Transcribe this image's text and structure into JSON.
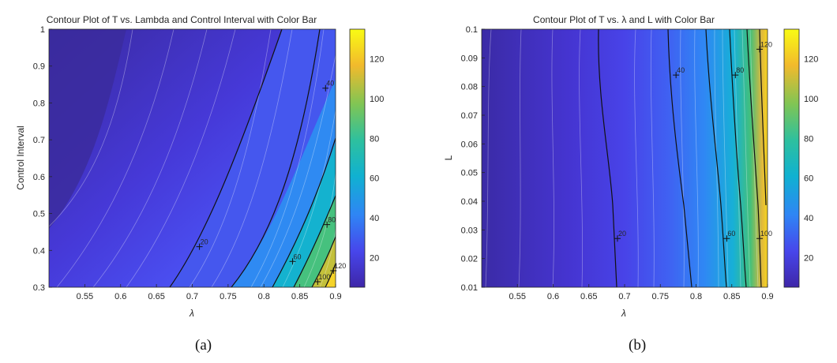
{
  "chart_data": [
    {
      "type": "contour",
      "panel": "a",
      "title": "Contour Plot of T vs. Lambda and Control Interval with Color Bar",
      "xlabel": "λ",
      "ylabel": "Control Interval",
      "xlim": [
        0.5,
        0.9
      ],
      "ylim": [
        0.3,
        1.0
      ],
      "xticks": [
        0.55,
        0.6,
        0.65,
        0.7,
        0.75,
        0.8,
        0.85,
        0.9
      ],
      "yticks": [
        0.3,
        0.4,
        0.5,
        0.6,
        0.7,
        0.8,
        0.9,
        1
      ],
      "colorbar": {
        "range": [
          5,
          135
        ],
        "ticks": [
          20,
          40,
          60,
          80,
          100,
          120
        ]
      },
      "contour_labels": [
        {
          "text": "20",
          "x": 0.71,
          "y": 0.41
        },
        {
          "text": "40",
          "x": 0.886,
          "y": 0.84
        },
        {
          "text": "60",
          "x": 0.84,
          "y": 0.37
        },
        {
          "text": "80",
          "x": 0.888,
          "y": 0.47
        },
        {
          "text": "100",
          "x": 0.875,
          "y": 0.315
        },
        {
          "text": "120",
          "x": 0.897,
          "y": 0.345
        }
      ],
      "caption": "(a)"
    },
    {
      "type": "contour",
      "panel": "b",
      "title": "Contour Plot of T vs. λ and L with Color Bar",
      "xlabel": "λ",
      "ylabel": "L",
      "xlim": [
        0.5,
        0.9
      ],
      "ylim": [
        0.01,
        0.1
      ],
      "xticks": [
        0.55,
        0.6,
        0.65,
        0.7,
        0.75,
        0.8,
        0.85,
        0.9
      ],
      "yticks": [
        0.01,
        0.02,
        0.03,
        0.04,
        0.05,
        0.06,
        0.07,
        0.08,
        0.09,
        0.1
      ],
      "colorbar": {
        "range": [
          5,
          135
        ],
        "ticks": [
          20,
          40,
          60,
          80,
          100,
          120
        ]
      },
      "contour_labels": [
        {
          "text": "20",
          "x": 0.69,
          "y": 0.027
        },
        {
          "text": "40",
          "x": 0.772,
          "y": 0.084
        },
        {
          "text": "60",
          "x": 0.843,
          "y": 0.027
        },
        {
          "text": "80",
          "x": 0.855,
          "y": 0.084
        },
        {
          "text": "100",
          "x": 0.889,
          "y": 0.027
        },
        {
          "text": "120",
          "x": 0.889,
          "y": 0.093
        }
      ],
      "caption": "(b)"
    }
  ]
}
